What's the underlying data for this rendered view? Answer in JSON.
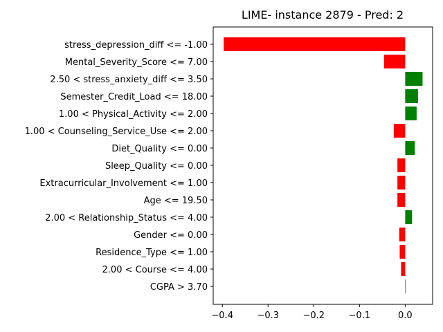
{
  "chart_data": {
    "type": "bar",
    "orientation": "horizontal",
    "title": "LIME- instance 2879 - Pred: 2",
    "xlabel": "",
    "ylabel": "",
    "xlim": [
      -0.42,
      0.06
    ],
    "xticks": [
      -0.4,
      -0.3,
      -0.2,
      -0.1,
      0.0
    ],
    "xtick_labels": [
      "−0.4",
      "−0.3",
      "−0.2",
      "−0.1",
      "0.0"
    ],
    "colors": {
      "positive": "#008000",
      "negative": "#ff0000"
    },
    "grid": false,
    "categories": [
      "stress_depression_diff <= -1.00",
      "Mental_Severity_Score <= 7.00",
      "2.50 < stress_anxiety_diff <= 3.50",
      "Semester_Credit_Load <= 18.00",
      "1.00 < Physical_Activity <= 2.00",
      "1.00 < Counseling_Service_Use <= 2.00",
      "Diet_Quality <= 0.00",
      "Sleep_Quality <= 0.00",
      "Extracurricular_Involvement <= 1.00",
      "Age <= 19.50",
      "2.00 < Relationship_Status <= 4.00",
      "Gender <= 0.00",
      "Residence_Type <= 1.00",
      "2.00 < Course <= 4.00",
      "CGPA > 3.70"
    ],
    "values": [
      -0.397,
      -0.046,
      0.038,
      0.028,
      0.025,
      -0.025,
      0.021,
      -0.017,
      -0.017,
      -0.017,
      0.015,
      -0.013,
      -0.012,
      -0.009,
      0.001
    ]
  }
}
